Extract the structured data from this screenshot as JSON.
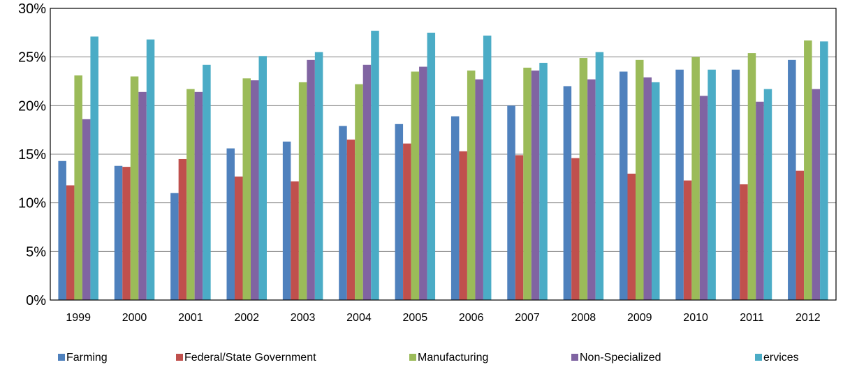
{
  "chart_data": {
    "type": "bar",
    "title": "",
    "xlabel": "",
    "ylabel": "",
    "ylim": [
      0,
      30
    ],
    "y_tick_labels": [
      "0%",
      "5%",
      "10%",
      "15%",
      "20%",
      "25%",
      "30%"
    ],
    "y_ticks": [
      0,
      5,
      10,
      15,
      20,
      25,
      30
    ],
    "grid": true,
    "legend_position": "bottom",
    "categories": [
      "1999",
      "2000",
      "2001",
      "2002",
      "2003",
      "2004",
      "2005",
      "2006",
      "2007",
      "2008",
      "2009",
      "2010",
      "2011",
      "2012"
    ],
    "series": [
      {
        "name": "Farming",
        "color": "#4f81bd",
        "values": [
          14.3,
          13.8,
          11.0,
          15.6,
          16.3,
          17.9,
          18.1,
          18.9,
          20.0,
          22.0,
          23.5,
          23.7,
          23.7,
          24.7
        ]
      },
      {
        "name": "Federal/State Government",
        "color": "#c0504d",
        "values": [
          11.8,
          13.7,
          14.5,
          12.7,
          12.2,
          16.5,
          16.1,
          15.3,
          14.9,
          14.6,
          13.0,
          12.3,
          11.9,
          13.3
        ]
      },
      {
        "name": "Manufacturing",
        "color": "#9bbb59",
        "values": [
          23.1,
          23.0,
          21.7,
          22.8,
          22.4,
          22.2,
          23.5,
          23.6,
          23.9,
          24.9,
          24.7,
          25.0,
          25.4,
          26.7
        ]
      },
      {
        "name": "Non-Specialized",
        "color": "#8064a2",
        "values": [
          18.6,
          21.4,
          21.4,
          22.6,
          24.7,
          24.2,
          24.0,
          22.7,
          23.6,
          22.7,
          22.9,
          21.0,
          20.4,
          21.7
        ]
      },
      {
        "name": "ervices",
        "color": "#4bacc6",
        "values": [
          27.1,
          26.8,
          24.2,
          25.1,
          25.5,
          27.7,
          27.5,
          27.2,
          24.4,
          25.5,
          22.4,
          23.7,
          21.7,
          26.6
        ]
      }
    ]
  }
}
